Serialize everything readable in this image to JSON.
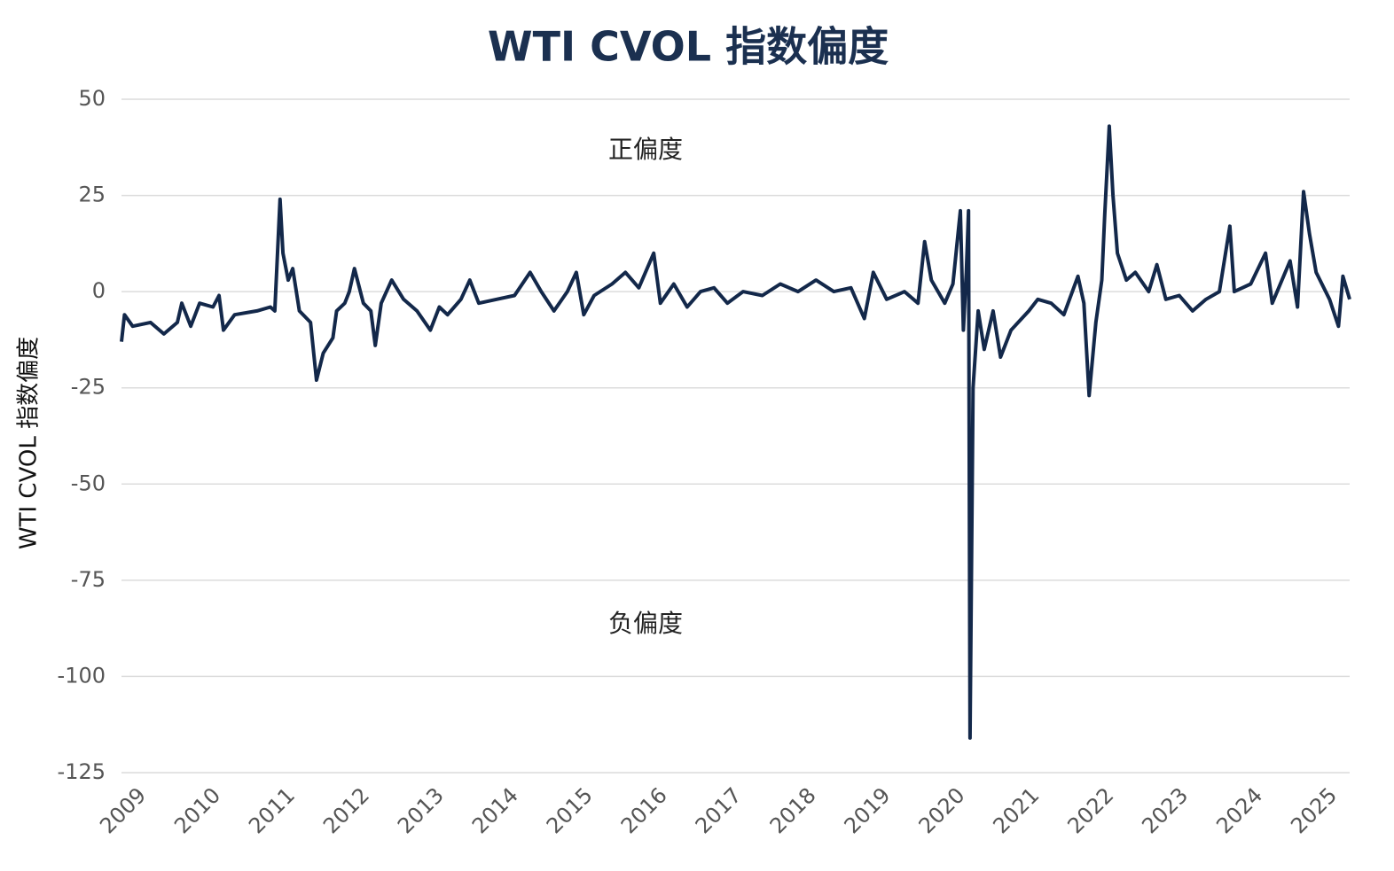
{
  "chart_data": {
    "type": "line",
    "title": "WTI CVOL 指数偏度",
    "y_label": "WTI CVOL 指数偏度",
    "annotations": [
      "正偏度",
      "负偏度"
    ],
    "xlim": [
      2009,
      2025.5
    ],
    "xticks": [
      2009,
      2010,
      2011,
      2012,
      2013,
      2014,
      2015,
      2016,
      2017,
      2018,
      2019,
      2020,
      2021,
      2022,
      2023,
      2024,
      2025
    ],
    "ylim": [
      -125,
      50
    ],
    "yticks": [
      50,
      25,
      0,
      -25,
      -50,
      -75,
      -100,
      -125
    ],
    "grid": true,
    "series": [
      {
        "name": "WTI CVOL 指数偏度",
        "color": "#13284a",
        "x": [
          2009.0,
          2009.04,
          2009.15,
          2009.39,
          2009.57,
          2009.75,
          2009.81,
          2009.93,
          2010.05,
          2010.23,
          2010.31,
          2010.37,
          2010.52,
          2010.82,
          2011.0,
          2011.06,
          2011.13,
          2011.17,
          2011.24,
          2011.3,
          2011.39,
          2011.54,
          2011.62,
          2011.71,
          2011.84,
          2011.89,
          2012.0,
          2012.06,
          2012.13,
          2012.25,
          2012.35,
          2012.41,
          2012.49,
          2012.63,
          2012.79,
          2012.97,
          2013.15,
          2013.27,
          2013.38,
          2013.56,
          2013.68,
          2013.8,
          2014.04,
          2014.28,
          2014.49,
          2014.64,
          2014.81,
          2014.99,
          2015.11,
          2015.21,
          2015.35,
          2015.59,
          2015.77,
          2015.95,
          2016.15,
          2016.24,
          2016.42,
          2016.6,
          2016.78,
          2016.96,
          2017.14,
          2017.35,
          2017.61,
          2017.85,
          2018.09,
          2018.33,
          2018.57,
          2018.8,
          2018.98,
          2019.1,
          2019.28,
          2019.52,
          2019.7,
          2019.79,
          2019.88,
          2020.06,
          2020.17,
          2020.27,
          2020.31,
          2020.35,
          2020.38,
          2020.4,
          2020.44,
          2020.51,
          2020.59,
          2020.71,
          2020.81,
          2020.95,
          2021.19,
          2021.31,
          2021.49,
          2021.66,
          2021.85,
          2021.93,
          2022.0,
          2022.09,
          2022.17,
          2022.21,
          2022.27,
          2022.32,
          2022.38,
          2022.5,
          2022.62,
          2022.8,
          2022.91,
          2023.03,
          2023.21,
          2023.39,
          2023.57,
          2023.75,
          2023.89,
          2023.95,
          2024.17,
          2024.37,
          2024.46,
          2024.7,
          2024.8,
          2024.88,
          2024.96,
          2025.05,
          2025.23,
          2025.35,
          2025.41,
          2025.5
        ],
        "values": [
          -13,
          -6,
          -9,
          -8,
          -11,
          -8,
          -3,
          -9,
          -3,
          -4,
          -1,
          -10,
          -6,
          -5,
          -4,
          -5,
          24,
          10,
          3,
          6,
          -5,
          -8,
          -23,
          -16,
          -12,
          -5,
          -3,
          0,
          6,
          -3,
          -5,
          -14,
          -3,
          3,
          -2,
          -5,
          -10,
          -4,
          -6,
          -2,
          3,
          -3,
          -2,
          -1,
          5,
          0,
          -5,
          0,
          5,
          -6,
          -1,
          2,
          5,
          1,
          10,
          -3,
          2,
          -4,
          0,
          1,
          -3,
          0,
          -1,
          2,
          0,
          3,
          0,
          1,
          -7,
          5,
          -2,
          0,
          -3,
          13,
          3,
          -3,
          2,
          21,
          -10,
          5,
          21,
          -116,
          -25,
          -5,
          -15,
          -5,
          -17,
          -10,
          -5,
          -2,
          -3,
          -6,
          4,
          -3,
          -27,
          -8,
          3,
          20,
          43,
          25,
          10,
          3,
          5,
          0,
          7,
          -2,
          -1,
          -5,
          -2,
          0,
          17,
          0,
          2,
          10,
          -3,
          8,
          -4,
          26,
          15,
          5,
          -2,
          -9,
          4,
          -2
        ]
      }
    ]
  }
}
